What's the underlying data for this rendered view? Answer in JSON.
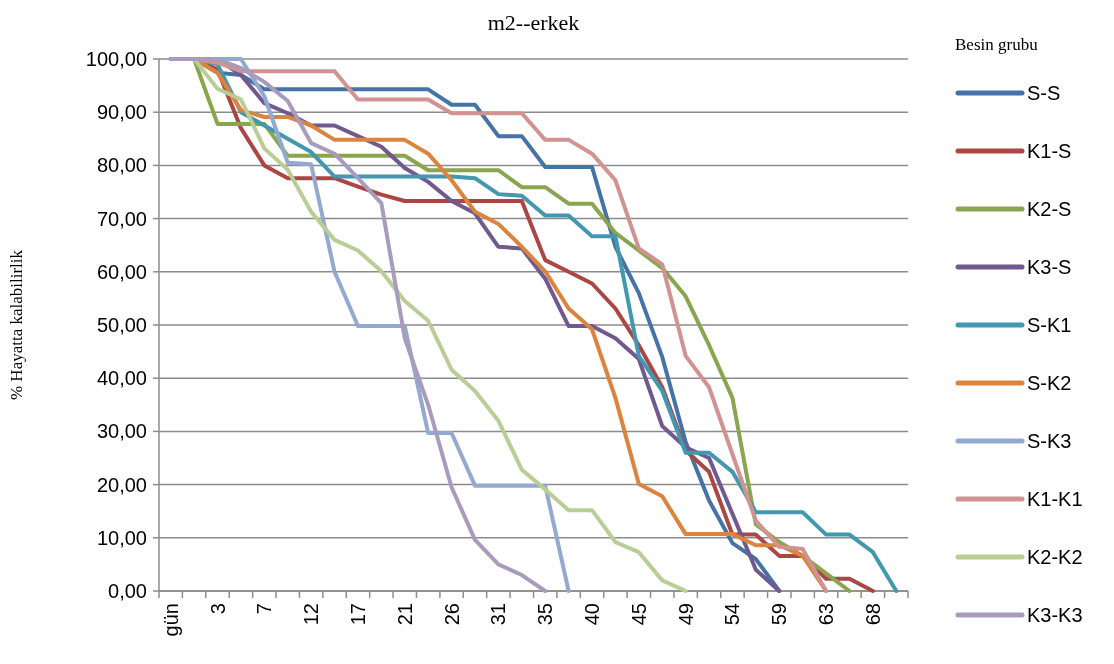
{
  "chart_data": {
    "type": "line",
    "title": "m2--erkek",
    "ylabel": "% Hayatta kalabilirlik",
    "legend_title": "Besin grubu",
    "legend": "right",
    "grid": "y",
    "marker": "none",
    "line_style": "solid",
    "categories": [
      "gün",
      null,
      "3",
      null,
      "7",
      null,
      "12",
      null,
      "17",
      null,
      "21",
      null,
      "26",
      null,
      "31",
      null,
      "35",
      null,
      "40",
      null,
      "45",
      null,
      "49",
      null,
      "54",
      null,
      "59",
      null,
      "63",
      null,
      "68",
      null
    ],
    "ylim": [
      0,
      100
    ],
    "yticks": [
      {
        "value": 0,
        "label": "0,00"
      },
      {
        "value": 10,
        "label": "10,00"
      },
      {
        "value": 20,
        "label": "20,00"
      },
      {
        "value": 30,
        "label": "30,00"
      },
      {
        "value": 40,
        "label": "40,00"
      },
      {
        "value": 50,
        "label": "50,00"
      },
      {
        "value": 60,
        "label": "60,00"
      },
      {
        "value": 70,
        "label": "70,00"
      },
      {
        "value": 80,
        "label": "80,00"
      },
      {
        "value": 90,
        "label": "90,00"
      },
      {
        "value": 100,
        "label": "100,00"
      }
    ],
    "series": [
      {
        "name": "S-S",
        "color": "#4572a7",
        "values": [
          100,
          100,
          97.4,
          97,
          94.3,
          94.3,
          94.3,
          94.3,
          94.3,
          94.3,
          94.3,
          94.3,
          91.4,
          91.4,
          85.5,
          85.5,
          79.7,
          79.7,
          79.7,
          64.7,
          56,
          44,
          28,
          17,
          9,
          6,
          0,
          null,
          null,
          null,
          null,
          null
        ]
      },
      {
        "name": "K1-S",
        "color": "#aa4643",
        "values": [
          100,
          100,
          98,
          87,
          80,
          77.6,
          77.6,
          77.6,
          76,
          74.5,
          73.3,
          73.3,
          73.3,
          73.3,
          73.3,
          73.3,
          62.2,
          60,
          57.8,
          53.1,
          46.2,
          38.3,
          26.4,
          22.4,
          10.6,
          10.6,
          6.6,
          6.6,
          2.3,
          2.3,
          0,
          null
        ]
      },
      {
        "name": "K2-S",
        "color": "#89a54e",
        "values": [
          100,
          100,
          87.8,
          87.8,
          87.8,
          81.8,
          81.8,
          81.8,
          81.8,
          81.8,
          81.8,
          79.1,
          79.1,
          79.1,
          79.1,
          75.9,
          75.9,
          72.8,
          72.8,
          67.3,
          64,
          60.7,
          55.4,
          46.2,
          36.3,
          12.5,
          9.2,
          6.6,
          3.3,
          0,
          null,
          null
        ]
      },
      {
        "name": "K3-S",
        "color": "#71588f",
        "values": [
          100,
          100,
          100,
          97,
          91.7,
          89.8,
          87.5,
          87.5,
          85.5,
          83.5,
          79.5,
          76.9,
          73.3,
          71,
          64.7,
          64.4,
          58.7,
          49.8,
          49.8,
          47.5,
          43.6,
          31,
          27,
          25,
          14.5,
          4,
          0,
          null,
          null,
          null,
          null,
          null
        ]
      },
      {
        "name": "S-K1",
        "color": "#4198af",
        "values": [
          100,
          100,
          99,
          90,
          87.5,
          85,
          82.5,
          77.9,
          77.9,
          77.9,
          77.9,
          77.9,
          77.9,
          77.6,
          74.6,
          74.3,
          70.6,
          70.6,
          66.7,
          66.7,
          44.2,
          37.6,
          26,
          26,
          22.4,
          14.8,
          14.8,
          14.8,
          10.6,
          10.6,
          7.3,
          0
        ]
      },
      {
        "name": "S-K2",
        "color": "#db843d",
        "values": [
          100,
          100,
          97.4,
          90.4,
          89.1,
          89.1,
          87.5,
          84.8,
          84.8,
          84.8,
          84.8,
          82.2,
          77.2,
          71.3,
          69,
          64.7,
          60.1,
          53.1,
          49.2,
          36.3,
          20.1,
          17.8,
          10.7,
          10.7,
          10.7,
          8.6,
          8.6,
          6.6,
          0,
          null,
          null,
          null
        ]
      },
      {
        "name": "S-K3",
        "color": "#93a9cf",
        "values": [
          100,
          100,
          100,
          100,
          93,
          80.5,
          80.2,
          60,
          49.8,
          49.8,
          49.8,
          29.7,
          29.7,
          19.8,
          19.8,
          19.8,
          19.8,
          0,
          null,
          null,
          null,
          null,
          null,
          null,
          null,
          null,
          null,
          null,
          null,
          null,
          null,
          null
        ]
      },
      {
        "name": "K1-K1",
        "color": "#d19392",
        "values": [
          100,
          100,
          99.3,
          97.7,
          97.7,
          97.7,
          97.7,
          97.7,
          92.4,
          92.4,
          92.4,
          92.4,
          89.8,
          89.8,
          89.8,
          89.8,
          84.8,
          84.8,
          82.2,
          77.2,
          64.4,
          61.4,
          44.2,
          38.3,
          25.7,
          13.2,
          8.3,
          7.9,
          0,
          null,
          null,
          null
        ]
      },
      {
        "name": "K2-K2",
        "color": "#b9cd96",
        "values": [
          100,
          100,
          94.4,
          92.4,
          83.2,
          79.2,
          71.3,
          66,
          64,
          60.1,
          54.5,
          50.8,
          41.6,
          37.6,
          32,
          22.8,
          19.1,
          15.2,
          15.2,
          9.2,
          7.3,
          2,
          0,
          null,
          null,
          null,
          null,
          null,
          null,
          null,
          null,
          null
        ]
      },
      {
        "name": "K3-K3",
        "color": "#a99bbd",
        "values": [
          100,
          100,
          100,
          98.3,
          95.7,
          92.1,
          84.2,
          82.2,
          77.6,
          72.9,
          47.5,
          35,
          19.5,
          9.6,
          5,
          3,
          0,
          null,
          null,
          null,
          null,
          null,
          null,
          null,
          null,
          null,
          null,
          null,
          null,
          null,
          null,
          null
        ]
      }
    ]
  }
}
